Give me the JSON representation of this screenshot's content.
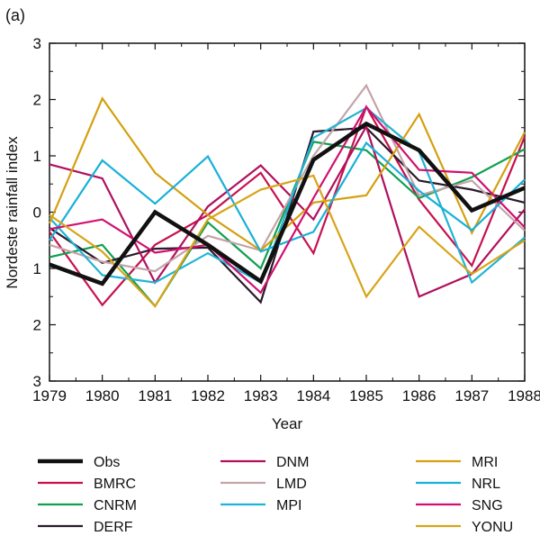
{
  "chart_data": {
    "type": "line",
    "panel_label": "(a)",
    "title": "",
    "xlabel": "Year",
    "ylabel": "Nordeste rainfall index",
    "xlim": [
      1979,
      1988
    ],
    "ylim": [
      -3,
      3
    ],
    "x": [
      1979,
      1980,
      1981,
      1982,
      1983,
      1984,
      1985,
      1986,
      1987,
      1988
    ],
    "x_tick_labels": [
      "1979",
      "1980",
      "1981",
      "1982",
      "1983",
      "1984",
      "1985",
      "1986",
      "1987",
      "1988"
    ],
    "y_ticks": [
      3,
      2,
      1,
      0,
      -1,
      -2,
      -3
    ],
    "y_tick_labels": [
      "3",
      "2",
      "1",
      "0",
      "1",
      "2",
      "3"
    ],
    "grid": false,
    "legend_placement": "bottom",
    "series": [
      {
        "name": "Obs",
        "color": "#111111",
        "emphasis": true,
        "values": [
          -0.93,
          -1.27,
          0.0,
          -0.58,
          -1.23,
          0.93,
          1.57,
          1.1,
          0.03,
          0.43
        ]
      },
      {
        "name": "BMRC",
        "color": "#c8104e",
        "emphasis": false,
        "values": [
          -0.35,
          -1.65,
          -0.58,
          -0.05,
          0.7,
          -0.73,
          1.87,
          0.22,
          -0.95,
          1.34
        ]
      },
      {
        "name": "CNRM",
        "color": "#11a050",
        "emphasis": false,
        "values": [
          -0.8,
          -0.58,
          -1.67,
          -0.18,
          -1.0,
          1.25,
          1.1,
          0.25,
          0.62,
          1.12
        ]
      },
      {
        "name": "DERF",
        "color": "#2a1a2a",
        "emphasis": false,
        "values": [
          -0.28,
          -0.9,
          -0.65,
          -0.63,
          -1.6,
          1.43,
          1.5,
          0.56,
          0.4,
          0.17
        ]
      },
      {
        "name": "DNM",
        "color": "#b0105e",
        "emphasis": false,
        "values": [
          0.85,
          0.6,
          -1.25,
          0.1,
          0.83,
          -0.13,
          1.52,
          -1.5,
          -1.1,
          0.05
        ]
      },
      {
        "name": "LMD",
        "color": "#c4a4a8",
        "emphasis": false,
        "values": [
          -0.58,
          -0.88,
          -1.05,
          -0.42,
          -0.68,
          1.0,
          2.25,
          0.3,
          0.56,
          -0.33
        ]
      },
      {
        "name": "MPI",
        "color": "#20b4d4",
        "emphasis": false,
        "values": [
          -0.1,
          -1.12,
          -1.25,
          -0.73,
          -1.25,
          1.32,
          1.85,
          1.07,
          -1.25,
          -0.45
        ]
      },
      {
        "name": "MRI",
        "color": "#d4a010",
        "emphasis": false,
        "values": [
          -0.2,
          2.02,
          0.7,
          -0.05,
          -0.68,
          0.17,
          0.3,
          1.74,
          -0.37,
          1.42
        ]
      },
      {
        "name": "NRL",
        "color": "#18b0d8",
        "emphasis": false,
        "values": [
          -0.5,
          0.92,
          0.15,
          0.99,
          -0.7,
          -0.35,
          1.23,
          0.38,
          -0.32,
          0.58
        ]
      },
      {
        "name": "SNG",
        "color": "#d01070",
        "emphasis": false,
        "values": [
          -0.3,
          -0.13,
          -0.72,
          -0.58,
          -1.43,
          0.25,
          1.87,
          0.75,
          0.7,
          -0.27
        ]
      },
      {
        "name": "YONU",
        "color": "#d8a418",
        "emphasis": false,
        "values": [
          -0.05,
          -0.7,
          -1.67,
          -0.13,
          0.4,
          0.65,
          -1.5,
          -0.26,
          -1.1,
          -0.5
        ]
      }
    ]
  }
}
